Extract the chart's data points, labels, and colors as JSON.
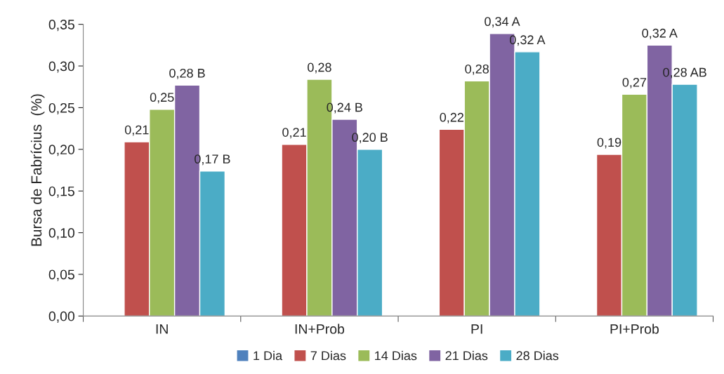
{
  "chart_data": {
    "type": "bar",
    "ylabel": "Bursa de Fabrícius  (%)",
    "categories": [
      "IN",
      "IN+Prob",
      "PI",
      "PI+Prob"
    ],
    "series": [
      {
        "name": "1 Dia",
        "color": "#4f81bd",
        "values": [
          null,
          null,
          null,
          null
        ],
        "value_labels": [
          null,
          null,
          null,
          null
        ]
      },
      {
        "name": "7 Dias",
        "color": "#c0504d",
        "values": [
          0.209,
          0.206,
          0.224,
          0.194
        ],
        "value_labels": [
          "0,21",
          "0,21",
          "0,22",
          "0,19"
        ]
      },
      {
        "name": "14 Dias",
        "color": "#9bbb59",
        "values": [
          0.248,
          0.284,
          0.282,
          0.266
        ],
        "value_labels": [
          "0,25",
          "0,28",
          "0,28",
          "0,27"
        ]
      },
      {
        "name": "21 Dias",
        "color": "#8064a2",
        "values": [
          0.277,
          0.236,
          0.339,
          0.325
        ],
        "value_labels": [
          "0,28 B",
          "0,24 B",
          "0,34 A",
          "0,32 A"
        ]
      },
      {
        "name": "28 Dias",
        "color": "#4bacc6",
        "values": [
          0.174,
          0.2,
          0.317,
          0.278
        ],
        "value_labels": [
          "0,17 B",
          "0,20 B",
          "0,32 A",
          "0,28 AB"
        ]
      }
    ],
    "ylim": [
      0,
      0.35
    ],
    "yticks": [
      {
        "value": 0,
        "label": "0,00"
      },
      {
        "value": 0.05,
        "label": "0,05"
      },
      {
        "value": 0.1,
        "label": "0,10"
      },
      {
        "value": 0.15,
        "label": "0,15"
      },
      {
        "value": 0.2,
        "label": "0,20"
      },
      {
        "value": 0.25,
        "label": "0,25"
      },
      {
        "value": 0.3,
        "label": "0,30"
      },
      {
        "value": 0.35,
        "label": "0,35"
      }
    ],
    "grid": false,
    "legend": "bottom"
  }
}
